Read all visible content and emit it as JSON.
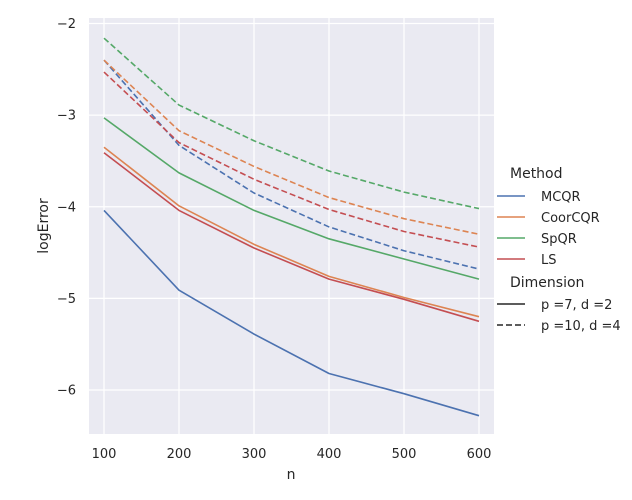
{
  "chart_data": {
    "type": "line",
    "title": "",
    "xlabel": "n",
    "ylabel": "logError",
    "x": [
      100,
      200,
      300,
      400,
      500,
      600
    ],
    "xlim": [
      80,
      620
    ],
    "ylim": [
      -6.48,
      -1.94
    ],
    "xticks": [
      100,
      200,
      300,
      400,
      500,
      600
    ],
    "yticks": [
      -2,
      -3,
      -4,
      -5,
      -6
    ],
    "ytick_labels": [
      "−2",
      "−3",
      "−4",
      "−5",
      "−6"
    ],
    "grid": true,
    "series": [
      {
        "name": "MCQR",
        "dimension": "p =7, d =2",
        "color": "#4c72b0",
        "dash": false,
        "values": [
          -4.04,
          -4.91,
          -5.39,
          -5.82,
          -6.04,
          -6.28
        ]
      },
      {
        "name": "CoorCQR",
        "dimension": "p =7, d =2",
        "color": "#dd8452",
        "dash": false,
        "values": [
          -3.35,
          -3.99,
          -4.41,
          -4.76,
          -4.99,
          -5.2
        ]
      },
      {
        "name": "SpQR",
        "dimension": "p =7, d =2",
        "color": "#55a868",
        "dash": false,
        "values": [
          -3.03,
          -3.63,
          -4.04,
          -4.35,
          -4.57,
          -4.79
        ]
      },
      {
        "name": "LS",
        "dimension": "p =7, d =2",
        "color": "#c44e52",
        "dash": false,
        "values": [
          -3.41,
          -4.04,
          -4.45,
          -4.79,
          -5.01,
          -5.25
        ]
      },
      {
        "name": "MCQR",
        "dimension": "p =10, d =4",
        "color": "#4c72b0",
        "dash": true,
        "values": [
          -2.4,
          -3.33,
          -3.85,
          -4.22,
          -4.48,
          -4.68
        ]
      },
      {
        "name": "CoorCQR",
        "dimension": "p =10, d =4",
        "color": "#dd8452",
        "dash": true,
        "values": [
          -2.4,
          -3.17,
          -3.56,
          -3.9,
          -4.13,
          -4.3
        ]
      },
      {
        "name": "SpQR",
        "dimension": "p =10, d =4",
        "color": "#55a868",
        "dash": true,
        "values": [
          -2.16,
          -2.89,
          -3.28,
          -3.61,
          -3.84,
          -4.02
        ]
      },
      {
        "name": "LS",
        "dimension": "p =10, d =4",
        "color": "#c44e52",
        "dash": true,
        "values": [
          -2.53,
          -3.3,
          -3.7,
          -4.03,
          -4.27,
          -4.44
        ]
      }
    ],
    "legend": {
      "position": "right",
      "method_title": "Method",
      "methods": [
        {
          "label": "MCQR",
          "color": "#4c72b0"
        },
        {
          "label": "CoorCQR",
          "color": "#dd8452"
        },
        {
          "label": "SpQR",
          "color": "#55a868"
        },
        {
          "label": "LS",
          "color": "#c44e52"
        }
      ],
      "dimension_title": "Dimension",
      "dimensions": [
        {
          "label": "p =7, d =2",
          "dash": false
        },
        {
          "label": "p =10, d =4",
          "dash": true
        }
      ]
    },
    "colors": {
      "plot_background": "#eaeaf2",
      "grid": "#ffffff",
      "text": "#262626",
      "legend_dimension_line": "#262626"
    }
  }
}
